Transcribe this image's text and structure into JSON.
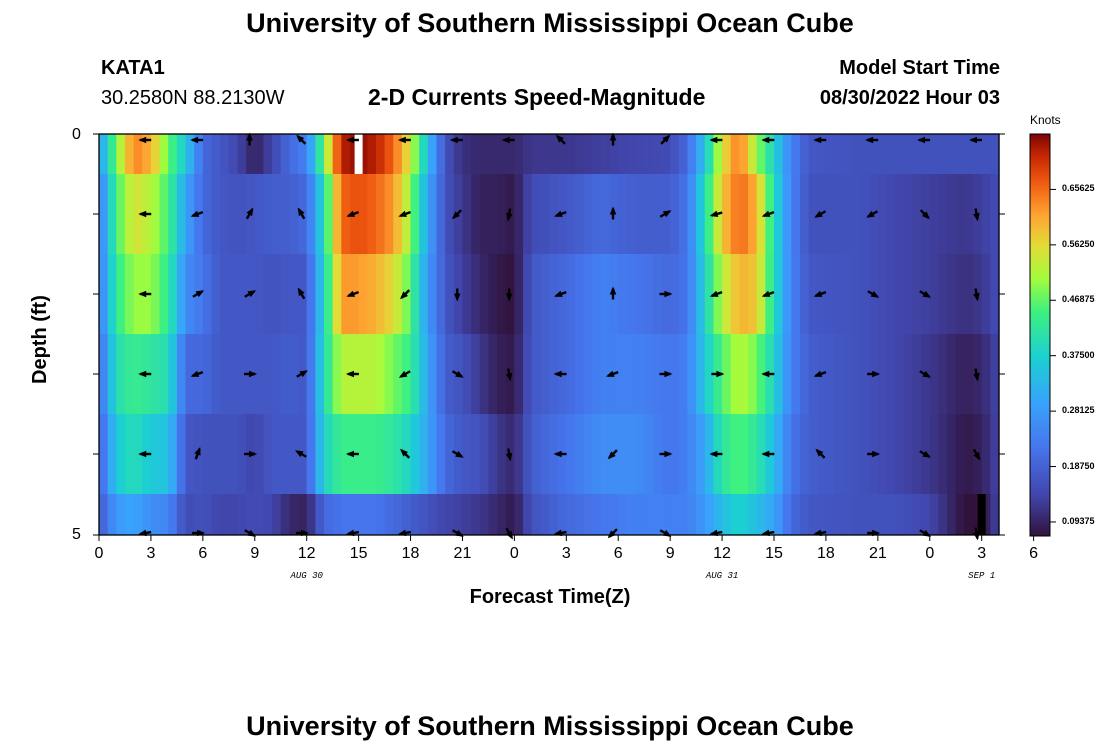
{
  "header": {
    "title": "University of Southern Mississippi Ocean Cube",
    "station": "KATA1",
    "coords": "30.2580N  88.2130W",
    "subtitle": "2-D Currents Speed-Magnitude",
    "model_start_label": "Model Start Time",
    "model_start_value": "08/30/2022 Hour 03"
  },
  "footer": {
    "title": "University of Southern Mississippi Ocean Cube"
  },
  "chart_data": {
    "type": "heatmap",
    "title": "2-D Currents Speed-Magnitude",
    "xlabel": "Forecast Time(Z)",
    "ylabel": "Depth (ft)",
    "x_hours": [
      0,
      52
    ],
    "x_tick_labels": [
      "0",
      "3",
      "6",
      "9",
      "12",
      "15",
      "18",
      "21",
      "0",
      "3",
      "6",
      "9",
      "12",
      "15",
      "18",
      "21",
      "0",
      "3",
      "6"
    ],
    "date_labels": [
      {
        "hour": 12,
        "label": "AUG 30"
      },
      {
        "hour": 36,
        "label": "AUG 31"
      },
      {
        "hour": 51,
        "label": "SEP 1"
      }
    ],
    "y_range": [
      0,
      5
    ],
    "y_tick_labels": [
      "0",
      "5"
    ],
    "colorbar": {
      "label": "Knots",
      "min": 0.07,
      "max": 0.75,
      "tick_labels": [
        "0.65625",
        "0.56250",
        "0.46875",
        "0.37500",
        "0.28125",
        "0.18750",
        "0.09375"
      ],
      "tick_values": [
        0.65625,
        0.5625,
        0.46875,
        0.375,
        0.28125,
        0.1875,
        0.09375
      ]
    },
    "time_keys": [
      [
        0,
        [
          0.28,
          0.22,
          0.22,
          0.2,
          0.18,
          0.17
        ]
      ],
      [
        1,
        [
          0.48,
          0.45,
          0.43,
          0.4,
          0.36,
          0.28
        ]
      ],
      [
        2,
        [
          0.64,
          0.55,
          0.5,
          0.44,
          0.4,
          0.3
        ]
      ],
      [
        3,
        [
          0.6,
          0.52,
          0.5,
          0.42,
          0.36,
          0.26
        ]
      ],
      [
        4,
        [
          0.47,
          0.45,
          0.43,
          0.4,
          0.35,
          0.25
        ]
      ],
      [
        5,
        [
          0.36,
          0.3,
          0.26,
          0.2,
          0.17,
          0.15
        ]
      ],
      [
        6,
        [
          0.2,
          0.2,
          0.22,
          0.2,
          0.16,
          0.16
        ]
      ],
      [
        7,
        [
          0.17,
          0.17,
          0.17,
          0.17,
          0.16,
          0.14
        ]
      ],
      [
        8,
        [
          0.14,
          0.16,
          0.17,
          0.17,
          0.16,
          0.14
        ]
      ],
      [
        9,
        [
          0.09,
          0.17,
          0.17,
          0.17,
          0.14,
          0.15
        ]
      ],
      [
        10,
        [
          0.14,
          0.18,
          0.16,
          0.17,
          0.17,
          0.14
        ]
      ],
      [
        11,
        [
          0.2,
          0.18,
          0.17,
          0.18,
          0.17,
          0.1
        ]
      ],
      [
        12,
        [
          0.24,
          0.2,
          0.17,
          0.17,
          0.17,
          0.09
        ]
      ],
      [
        13,
        [
          0.48,
          0.4,
          0.38,
          0.4,
          0.38,
          0.2
        ]
      ],
      [
        14,
        [
          0.72,
          0.66,
          0.62,
          0.52,
          0.44,
          0.22
        ]
      ],
      [
        15,
        [
          0.74,
          0.68,
          0.62,
          0.52,
          0.44,
          0.22
        ]
      ],
      [
        16,
        [
          0.72,
          0.66,
          0.6,
          0.52,
          0.44,
          0.22
        ]
      ],
      [
        17,
        [
          0.66,
          0.62,
          0.56,
          0.48,
          0.42,
          0.2
        ]
      ],
      [
        18,
        [
          0.54,
          0.5,
          0.46,
          0.44,
          0.38,
          0.18
        ]
      ],
      [
        19,
        [
          0.34,
          0.3,
          0.28,
          0.3,
          0.3,
          0.16
        ]
      ],
      [
        20,
        [
          0.16,
          0.16,
          0.17,
          0.18,
          0.2,
          0.14
        ]
      ],
      [
        21,
        [
          0.11,
          0.12,
          0.13,
          0.16,
          0.17,
          0.13
        ]
      ],
      [
        22,
        [
          0.1,
          0.09,
          0.1,
          0.12,
          0.16,
          0.12
        ]
      ],
      [
        23,
        [
          0.1,
          0.09,
          0.08,
          0.09,
          0.12,
          0.1
        ]
      ],
      [
        24,
        [
          0.1,
          0.08,
          0.07,
          0.08,
          0.1,
          0.08
        ]
      ],
      [
        25,
        [
          0.12,
          0.15,
          0.17,
          0.17,
          0.18,
          0.16
        ]
      ],
      [
        27,
        [
          0.12,
          0.17,
          0.2,
          0.2,
          0.22,
          0.2
        ]
      ],
      [
        29,
        [
          0.13,
          0.2,
          0.24,
          0.24,
          0.26,
          0.22
        ]
      ],
      [
        31,
        [
          0.14,
          0.18,
          0.22,
          0.24,
          0.26,
          0.24
        ]
      ],
      [
        33,
        [
          0.15,
          0.18,
          0.2,
          0.22,
          0.22,
          0.24
        ]
      ],
      [
        34,
        [
          0.2,
          0.22,
          0.22,
          0.24,
          0.24,
          0.24
        ]
      ],
      [
        35,
        [
          0.35,
          0.4,
          0.38,
          0.36,
          0.3,
          0.28
        ]
      ],
      [
        36,
        [
          0.55,
          0.58,
          0.52,
          0.46,
          0.42,
          0.34
        ]
      ],
      [
        37,
        [
          0.65,
          0.66,
          0.6,
          0.52,
          0.46,
          0.38
        ]
      ],
      [
        38,
        [
          0.5,
          0.6,
          0.58,
          0.48,
          0.42,
          0.34
        ]
      ],
      [
        39,
        [
          0.38,
          0.4,
          0.4,
          0.38,
          0.34,
          0.3
        ]
      ],
      [
        40,
        [
          0.24,
          0.24,
          0.24,
          0.24,
          0.22,
          0.2
        ]
      ],
      [
        41,
        [
          0.17,
          0.16,
          0.17,
          0.18,
          0.18,
          0.17
        ]
      ],
      [
        44,
        [
          0.16,
          0.16,
          0.16,
          0.16,
          0.16,
          0.16
        ]
      ],
      [
        46,
        [
          0.16,
          0.14,
          0.14,
          0.14,
          0.14,
          0.16
        ]
      ],
      [
        48,
        [
          0.16,
          0.13,
          0.13,
          0.12,
          0.12,
          0.14
        ]
      ],
      [
        50,
        [
          0.16,
          0.12,
          0.11,
          0.09,
          0.08,
          0.07
        ]
      ],
      [
        51,
        [
          0.16,
          0.13,
          0.12,
          0.1,
          0.09,
          0.07
        ]
      ],
      [
        52,
        [
          0.16,
          0.15,
          0.15,
          0.14,
          0.14,
          0.14
        ]
      ]
    ],
    "vectors": {
      "hours": [
        2.7,
        5.7,
        8.7,
        11.7,
        14.7,
        17.7,
        20.7,
        23.7,
        26.7,
        29.7,
        32.7,
        35.7,
        38.7,
        41.7,
        44.7,
        47.7,
        50.7
      ],
      "depth_rows": [
        0,
        1,
        2,
        3,
        4,
        5
      ],
      "angles_deg": [
        [
          180,
          180,
          90,
          135,
          180,
          180,
          180,
          180,
          135,
          90,
          45,
          180,
          180,
          180,
          180,
          180,
          180
        ],
        [
          180,
          200,
          60,
          120,
          200,
          200,
          225,
          260,
          200,
          90,
          30,
          195,
          200,
          210,
          210,
          315,
          280
        ],
        [
          180,
          30,
          30,
          120,
          200,
          225,
          270,
          270,
          200,
          90,
          0,
          200,
          200,
          200,
          330,
          330,
          280
        ],
        [
          180,
          200,
          0,
          30,
          180,
          210,
          330,
          280,
          180,
          200,
          0,
          0,
          180,
          200,
          0,
          330,
          280
        ],
        [
          180,
          70,
          0,
          150,
          180,
          135,
          330,
          280,
          180,
          225,
          0,
          180,
          180,
          135,
          0,
          330,
          300
        ],
        [
          190,
          0,
          330,
          0,
          190,
          190,
          330,
          300,
          190,
          225,
          330,
          190,
          190,
          190,
          0,
          330,
          280
        ]
      ]
    },
    "missing_cells": [
      {
        "hour": 15,
        "depth_row": 0,
        "color": "#ffffff"
      },
      {
        "hour": 51,
        "depth_row": 5,
        "color": "#000000"
      }
    ]
  }
}
